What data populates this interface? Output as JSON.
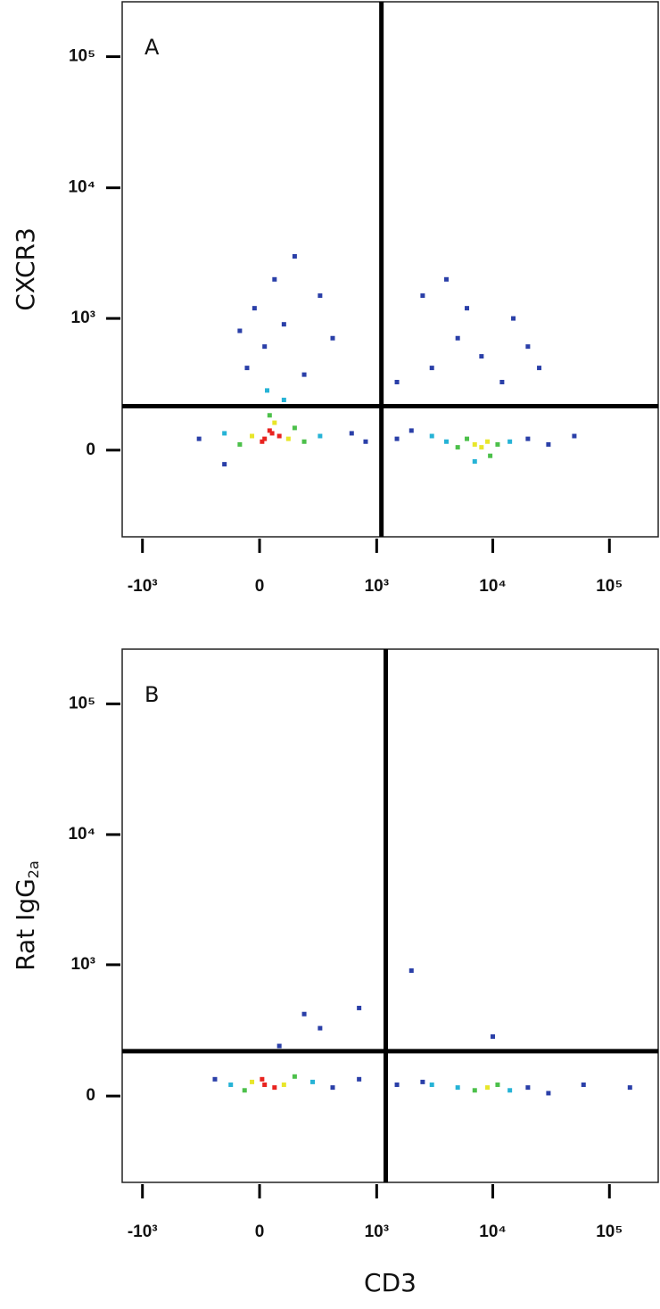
{
  "chart_data": [
    {
      "type": "scatter",
      "panel_label": "A",
      "ylabel": "CXCR3",
      "xscale": "biexponential",
      "yscale": "biexponential",
      "xlim": [
        -1500,
        262144
      ],
      "ylim": [
        -436,
        262144
      ],
      "xticks": [
        {
          "value": -1000,
          "label": "-10³"
        },
        0,
        {
          "value": 1000,
          "label": "10³"
        },
        {
          "value": 10000,
          "label": "10⁴"
        },
        {
          "value": 100000,
          "label": "10⁵"
        }
      ],
      "yticks": [
        0,
        {
          "value": 1000,
          "label": "10³"
        },
        {
          "value": 10000,
          "label": "10⁴"
        },
        {
          "value": 100000,
          "label": "10⁵"
        }
      ],
      "gates": {
        "x": 1100,
        "y": 170
      },
      "series": [
        {
          "name": "blue",
          "color": "#2a3fa8",
          "x": [
            -50,
            20,
            100,
            200,
            -20,
            60,
            300,
            400,
            150,
            -80,
            3000,
            5000,
            8000,
            15000,
            2500,
            12000,
            20000,
            6000,
            4000,
            25000,
            1500,
            600,
            800,
            1500,
            2000,
            20000,
            30000,
            50000,
            -300,
            -150
          ],
          "y": [
            400,
            600,
            900,
            350,
            1200,
            2000,
            1500,
            700,
            3000,
            800,
            400,
            700,
            500,
            1000,
            1500,
            300,
            600,
            1200,
            2000,
            400,
            300,
            60,
            30,
            40,
            70,
            40,
            20,
            50,
            40,
            -50
          ]
        },
        {
          "name": "cyan",
          "color": "#26b3d6",
          "x": [
            -150,
            300,
            100,
            30,
            4000,
            14000,
            3000,
            7000
          ],
          "y": [
            60,
            50,
            200,
            250,
            30,
            30,
            50,
            -40
          ]
        },
        {
          "name": "green",
          "color": "#4cc04a",
          "x": [
            -80,
            150,
            200,
            40,
            6000,
            11000,
            5000,
            9500
          ],
          "y": [
            20,
            80,
            30,
            130,
            40,
            20,
            10,
            -20
          ]
        },
        {
          "name": "yellow",
          "color": "#e8e62a",
          "x": [
            -30,
            120,
            60,
            7000,
            9000,
            8000
          ],
          "y": [
            50,
            40,
            100,
            20,
            30,
            10
          ]
        },
        {
          "name": "red",
          "color": "#e8231f",
          "x": [
            20,
            50,
            10,
            80,
            40
          ],
          "y": [
            40,
            60,
            30,
            50,
            70
          ]
        }
      ]
    },
    {
      "type": "scatter",
      "panel_label": "B",
      "ylabel": "Rat IgG",
      "ylabel_sub": "2a",
      "xlabel": "CD3",
      "xscale": "biexponential",
      "yscale": "biexponential",
      "xlim": [
        -1500,
        262144
      ],
      "ylim": [
        -436,
        262144
      ],
      "xticks": [
        {
          "value": -1000,
          "label": "-10³"
        },
        0,
        {
          "value": 1000,
          "label": "10³"
        },
        {
          "value": 10000,
          "label": "10⁴"
        },
        {
          "value": 100000,
          "label": "10⁵"
        }
      ],
      "yticks": [
        0,
        {
          "value": 1000,
          "label": "10³"
        },
        {
          "value": 10000,
          "label": "10⁴"
        },
        {
          "value": 100000,
          "label": "10⁵"
        }
      ],
      "gates": {
        "x": 1200,
        "y": 175
      },
      "series": [
        {
          "name": "blue",
          "color": "#2a3fa8",
          "x": [
            400,
            700,
            1500,
            2500,
            20000,
            30000,
            60000,
            150000,
            300,
            200,
            700,
            2000,
            10000,
            -200,
            80
          ],
          "y": [
            30,
            60,
            40,
            50,
            30,
            10,
            40,
            30,
            300,
            400,
            450,
            900,
            250,
            60,
            200
          ]
        },
        {
          "name": "cyan",
          "color": "#26b3d6",
          "x": [
            250,
            -120,
            5000,
            14000,
            3000
          ],
          "y": [
            50,
            40,
            30,
            20,
            40
          ]
        },
        {
          "name": "green",
          "color": "#4cc04a",
          "x": [
            150,
            -60,
            7000,
            11000
          ],
          "y": [
            70,
            20,
            20,
            40
          ]
        },
        {
          "name": "yellow",
          "color": "#e8e62a",
          "x": [
            -30,
            100,
            9000
          ],
          "y": [
            50,
            40,
            30
          ]
        },
        {
          "name": "red",
          "color": "#e8231f",
          "x": [
            20,
            60,
            10
          ],
          "y": [
            40,
            30,
            60
          ]
        }
      ]
    }
  ]
}
